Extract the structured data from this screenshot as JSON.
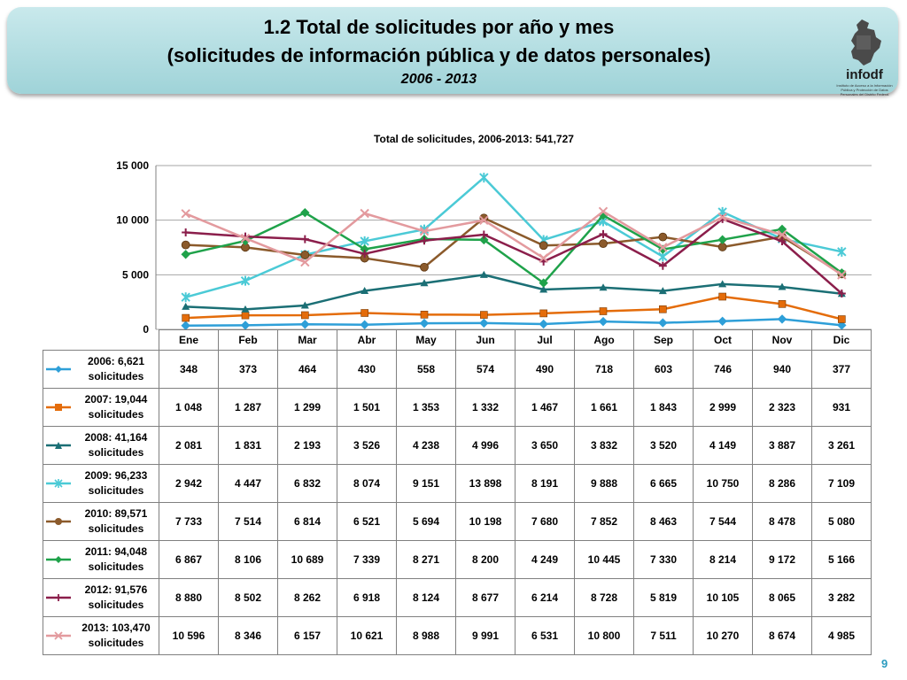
{
  "header": {
    "title_line1": "1.2 Total de solicitudes por año y mes",
    "title_line2": "(solicitudes de información pública y de datos personales)",
    "title_line3": "2006 - 2013",
    "logo_text": "infodf",
    "logo_caption": "Instituto de Acceso a la Información Pública y Protección de Datos Personales del Distrito Federal"
  },
  "page_number": "9",
  "chart_data": {
    "type": "line",
    "title": "Total de solicitudes, 2006-2013: 541,727",
    "categories": [
      "Ene",
      "Feb",
      "Mar",
      "Abr",
      "May",
      "Jun",
      "Jul",
      "Ago",
      "Sep",
      "Oct",
      "Nov",
      "Dic"
    ],
    "ylim": [
      0,
      15000
    ],
    "yticks": [
      0,
      5000,
      10000,
      15000
    ],
    "ytick_labels": [
      "0",
      "5 000",
      "10 000",
      "15 000"
    ],
    "grid": true,
    "series": [
      {
        "name": "2006: 6,621 solicitudes",
        "color": "#2e9fd8",
        "marker": "diamond",
        "values": [
          348,
          373,
          464,
          430,
          558,
          574,
          490,
          718,
          603,
          746,
          940,
          377
        ],
        "labels": [
          "348",
          "373",
          "464",
          "430",
          "558",
          "574",
          "490",
          "718",
          "603",
          "746",
          "940",
          "377"
        ]
      },
      {
        "name": "2007: 19,044 solicitudes",
        "color": "#e46c0a",
        "marker": "square",
        "values": [
          1048,
          1287,
          1299,
          1501,
          1353,
          1332,
          1467,
          1661,
          1843,
          2999,
          2323,
          931
        ],
        "labels": [
          "1 048",
          "1 287",
          "1 299",
          "1 501",
          "1 353",
          "1 332",
          "1 467",
          "1 661",
          "1 843",
          "2 999",
          "2 323",
          "931"
        ]
      },
      {
        "name": "2008: 41,164 solicitudes",
        "color": "#1b6f75",
        "marker": "triangle",
        "values": [
          2081,
          1831,
          2193,
          3526,
          4238,
          4996,
          3650,
          3832,
          3520,
          4149,
          3887,
          3261
        ],
        "labels": [
          "2 081",
          "1 831",
          "2 193",
          "3 526",
          "4 238",
          "4 996",
          "3 650",
          "3 832",
          "3 520",
          "4 149",
          "3 887",
          "3 261"
        ]
      },
      {
        "name": "2009: 96,233 solicitudes",
        "color": "#4bcad6",
        "marker": "star",
        "values": [
          2942,
          4447,
          6832,
          8074,
          9151,
          13898,
          8191,
          9888,
          6665,
          10750,
          8286,
          7109
        ],
        "labels": [
          "2 942",
          "4 447",
          "6 832",
          "8 074",
          "9 151",
          "13 898",
          "8 191",
          "9 888",
          "6 665",
          "10 750",
          "8 286",
          "7 109"
        ]
      },
      {
        "name": "2010: 89,571 solicitudes",
        "color": "#8b5a2b",
        "marker": "circle",
        "values": [
          7733,
          7514,
          6814,
          6521,
          5694,
          10198,
          7680,
          7852,
          8463,
          7544,
          8478,
          5080
        ],
        "labels": [
          "7 733",
          "7 514",
          "6 814",
          "6 521",
          "5 694",
          "10 198",
          "7 680",
          "7 852",
          "8 463",
          "7 544",
          "8 478",
          "5 080"
        ]
      },
      {
        "name": "2011: 94,048 solicitudes",
        "color": "#1fa24a",
        "marker": "diamond",
        "values": [
          6867,
          8106,
          10689,
          7339,
          8271,
          8200,
          4249,
          10445,
          7330,
          8214,
          9172,
          5166
        ],
        "labels": [
          "6 867",
          "8 106",
          "10 689",
          "7 339",
          "8 271",
          "8 200",
          "4 249",
          "10 445",
          "7 330",
          "8 214",
          "9 172",
          "5 166"
        ]
      },
      {
        "name": "2012: 91,576 solicitudes",
        "color": "#8b1e4b",
        "marker": "plus",
        "values": [
          8880,
          8502,
          8262,
          6918,
          8124,
          8677,
          6214,
          8728,
          5819,
          10105,
          8065,
          3282
        ],
        "labels": [
          "8 880",
          "8 502",
          "8 262",
          "6 918",
          "8 124",
          "8 677",
          "6 214",
          "8 728",
          "5 819",
          "10 105",
          "8 065",
          "3 282"
        ]
      },
      {
        "name": "2013: 103,470 solicitudes",
        "color": "#e39a9e",
        "marker": "x",
        "values": [
          10596,
          8346,
          6157,
          10621,
          8988,
          9991,
          6531,
          10800,
          7511,
          10270,
          8674,
          4985
        ],
        "labels": [
          "10 596",
          "8 346",
          "6 157",
          "10 621",
          "8 988",
          "9 991",
          "6 531",
          "10 800",
          "7 511",
          "10 270",
          "8 674",
          "4 985"
        ]
      }
    ]
  }
}
